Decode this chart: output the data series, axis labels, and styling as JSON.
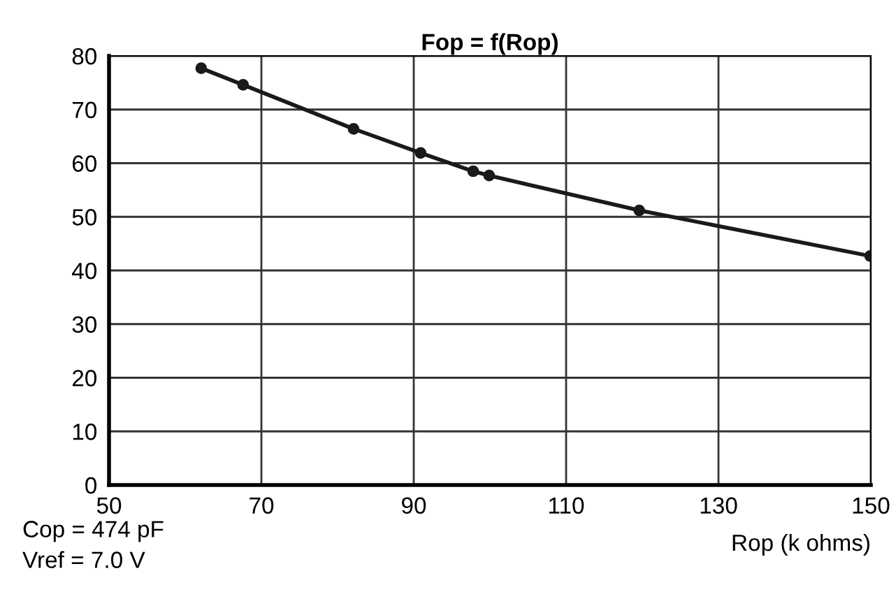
{
  "chart_data": {
    "type": "line",
    "title": "Fop = f(Rop)",
    "xlabel": "Rop (k ohms)",
    "annotations": [
      "Cop = 474 pF",
      "Vref = 7.0 V"
    ],
    "series": [
      {
        "color": "#1a1a1a",
        "x": [
          62.1,
          67.6,
          82.1,
          90.9,
          97.8,
          99.9,
          119.6,
          149.9
        ],
        "values": [
          77.7,
          74.6,
          66.4,
          61.9,
          58.5,
          57.7,
          51.2,
          42.7
        ]
      }
    ],
    "xlim": [
      50,
      150
    ],
    "xticks": [
      50,
      70,
      90,
      110,
      130,
      150
    ],
    "ylim": [
      0,
      80
    ],
    "yticks": [
      0,
      10,
      20,
      30,
      40,
      50,
      60,
      70,
      80
    ],
    "grid": true,
    "marker": "circle",
    "line_style": "solid"
  }
}
